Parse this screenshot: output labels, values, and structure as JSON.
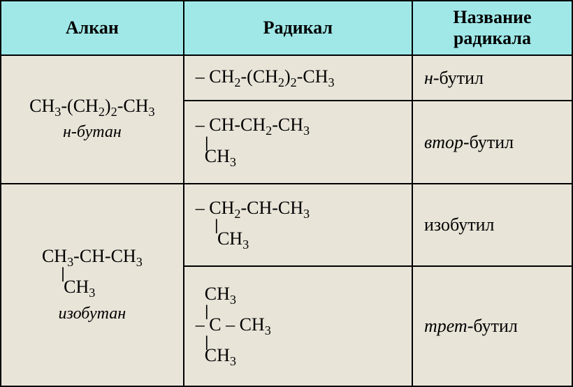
{
  "headers": {
    "col1": "Алкан",
    "col2": "Радикал",
    "col3": "Название радикала"
  },
  "rows": [
    {
      "alkan": {
        "formula_parts": [
          "CH",
          "3",
          "-(CH",
          "2",
          ")",
          "2",
          "-CH",
          "3"
        ],
        "name_prefix": "н",
        "name_rest": "-бутан"
      },
      "radicals": [
        {
          "formula_lines": [
            {
              "parts": [
                "– CH",
                "2",
                "-(CH",
                "2",
                ")",
                "2",
                "-CH",
                "3"
              ]
            }
          ],
          "name_prefix": "н",
          "name_rest": "-бутил"
        },
        {
          "formula_lines": [
            {
              "parts": [
                "– CH-CH",
                "2",
                "-CH",
                "3"
              ]
            },
            {
              "parts": [
                "|"
              ],
              "pipe": true,
              "indent": "indent2"
            },
            {
              "parts": [
                "CH",
                "3"
              ],
              "indent": "indent2"
            }
          ],
          "name_prefix": "втор",
          "name_rest": "-бутил"
        }
      ]
    },
    {
      "alkan": {
        "formula_lines": [
          {
            "parts": [
              "CH",
              "3",
              "-CH-CH",
              "3"
            ]
          },
          {
            "parts": [
              "|"
            ],
            "pipe": true,
            "indent": "indent1"
          },
          {
            "parts": [
              "CH",
              "3"
            ],
            "indent": "indent1"
          }
        ],
        "name_prefix": "",
        "name_rest": "изобутан"
      },
      "radicals": [
        {
          "formula_lines": [
            {
              "parts": [
                "– CH",
                "2",
                "-CH-CH",
                "3"
              ]
            },
            {
              "parts": [
                "|"
              ],
              "pipe": true,
              "indent": "indent1"
            },
            {
              "parts": [
                "CH",
                "3"
              ],
              "indent": "indent1"
            }
          ],
          "name_prefix": "",
          "name_rest": "изобутил"
        },
        {
          "formula_lines": [
            {
              "parts": [
                "CH",
                "3"
              ],
              "indent": "indent2"
            },
            {
              "parts": [
                "|"
              ],
              "pipe": true,
              "indent": "indent2"
            },
            {
              "parts": [
                "– C – CH",
                "3"
              ]
            },
            {
              "parts": [
                "|"
              ],
              "pipe": true,
              "indent": "indent2"
            },
            {
              "parts": [
                "CH",
                "3"
              ],
              "indent": "indent2"
            }
          ],
          "name_prefix": "трет",
          "name_rest": "-бутил"
        }
      ]
    }
  ],
  "colors": {
    "header_bg": "#a0e8e8",
    "body_bg": "#e8e4d8",
    "border": "#000000",
    "text": "#000000"
  },
  "fonts": {
    "family": "Times New Roman",
    "header_size": 26,
    "cell_size": 26
  },
  "column_widths_pct": [
    32,
    40,
    28
  ]
}
